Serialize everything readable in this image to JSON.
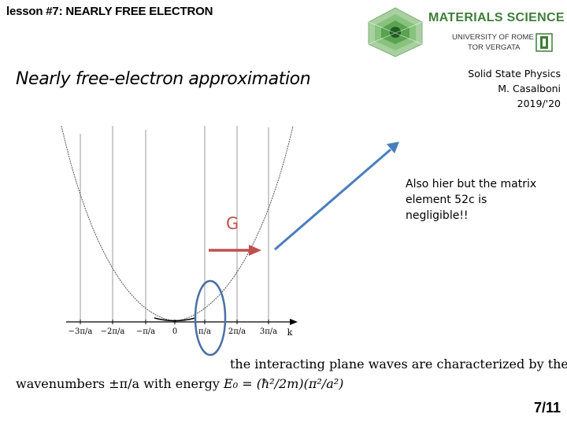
{
  "header": {
    "lesson_title": "lesson #7: NEARLY FREE ELECTRON",
    "logo": {
      "name": "MATERIALS SCIENCE",
      "university": "UNIVERSITY OF ROME",
      "campus": "TOR VERGATA",
      "accent_color": "#3f7d3a"
    }
  },
  "course": {
    "name": "Solid State Physics",
    "author": "M. Casalboni",
    "year": "2019/'20"
  },
  "slide": {
    "heading": "Nearly free-electron approximation",
    "g_label": "G",
    "note": "Also hier but the matrix element 52c is negligible!!",
    "figure": {
      "tick_labels": [
        "−3π/a",
        "−2π/a",
        "−π/a",
        "0",
        "π/a",
        "2π/a",
        "3π/a"
      ],
      "axis_label": "k"
    },
    "bottom_text_line1": "the interacting plane waves are characterized by the",
    "bottom_text_line2_prefix": "wavenumbers ±π/a with energy ",
    "bottom_text_line2_formula": "E₀ = (ħ²/2m)(π²/a²)",
    "arrow_colors": {
      "red": "#c0504d",
      "blue": "#4a7ebb"
    }
  },
  "footer": {
    "page": "7/11"
  }
}
